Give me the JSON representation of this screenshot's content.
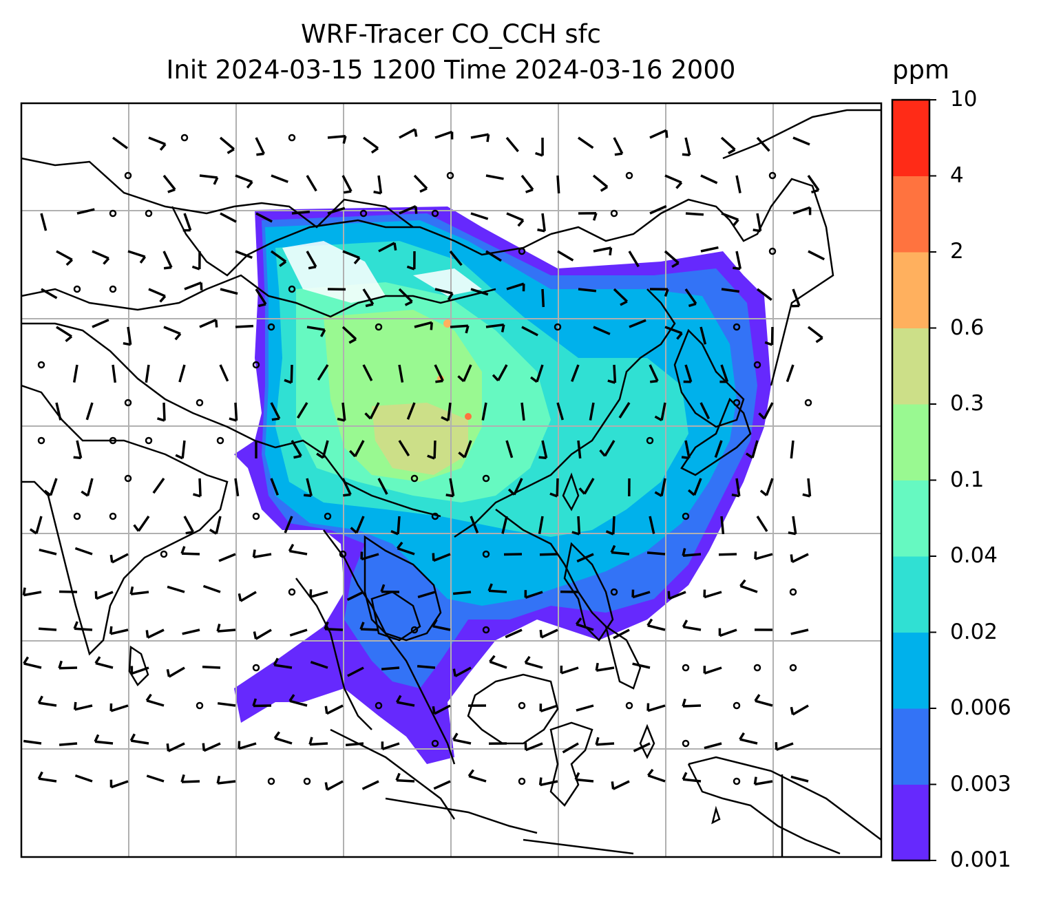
{
  "title_line1": "WRF-Tracer CO_CCH sfc",
  "title_line2": "Init 2024-03-15 1200 Time 2024-03-16 2000",
  "colorbar": {
    "units": "ppm",
    "ticks": [
      "0.001",
      "0.003",
      "0.006",
      "0.02",
      "0.04",
      "0.1",
      "0.3",
      "0.6",
      "2",
      "4",
      "10"
    ],
    "colors": [
      "#6629fd",
      "#3373f6",
      "#00b1eb",
      "#30e0d3",
      "#66f9c1",
      "#99f991",
      "#ccdf88",
      "#ffb05e",
      "#ff733f",
      "#ff2b17"
    ]
  }
}
